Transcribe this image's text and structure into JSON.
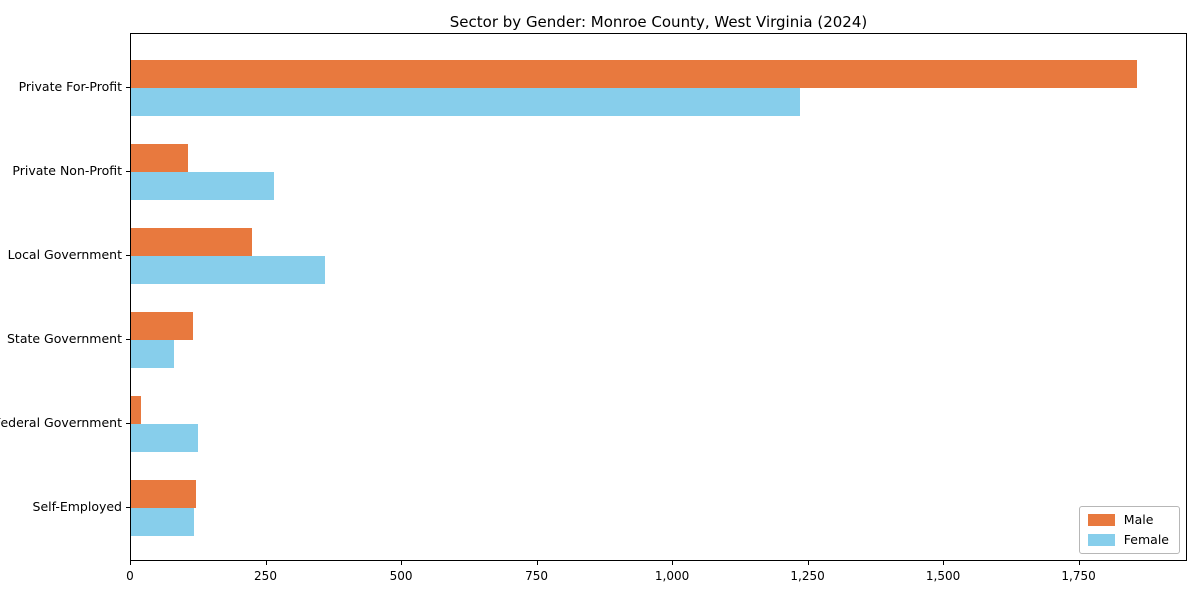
{
  "title": "Sector by Gender: Monroe County, West Virginia (2024)",
  "colors": {
    "male": "#e8793e",
    "female": "#87ceeb",
    "axis": "#000000",
    "legend_border": "#b7b7b7"
  },
  "legend": {
    "position": "lower right",
    "items": [
      {
        "label": "Male",
        "color": "#e8793e"
      },
      {
        "label": "Female",
        "color": "#87ceeb"
      }
    ]
  },
  "chart_data": {
    "type": "bar",
    "orientation": "horizontal",
    "title": "Sector by Gender: Monroe County, West Virginia (2024)",
    "categories": [
      "Private For-Profit",
      "Private Non-Profit",
      "Local Government",
      "State Government",
      "Federal Government",
      "Self-Employed"
    ],
    "series": [
      {
        "name": "Male",
        "color": "#e8793e",
        "values": [
          1855,
          106,
          224,
          114,
          19,
          120
        ]
      },
      {
        "name": "Female",
        "color": "#87ceeb",
        "values": [
          1234,
          264,
          358,
          80,
          124,
          117
        ]
      }
    ],
    "xlabel": "",
    "ylabel": "",
    "xlim": [
      0,
      1950
    ],
    "xticks": [
      0,
      250,
      500,
      750,
      1000,
      1250,
      1500,
      1750
    ],
    "xtick_labels": [
      "0",
      "250",
      "500",
      "750",
      "1,000",
      "1,250",
      "1,500",
      "1,750"
    ],
    "grid": false,
    "legend_position": "lower right"
  }
}
